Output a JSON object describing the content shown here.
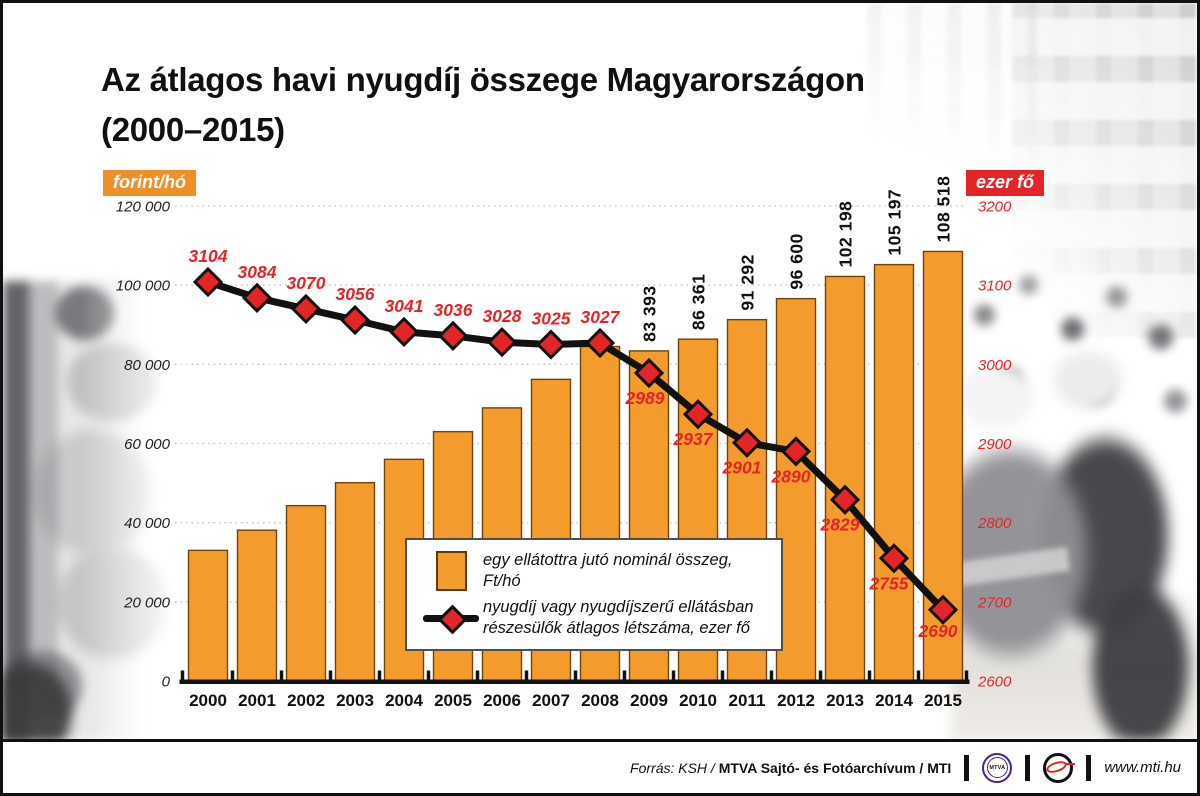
{
  "title": {
    "line1": "Az átlagos havi nyugdíj összege Magyarországon",
    "line2": "(2000–2015)"
  },
  "axis_badges": {
    "left": "forint/hó",
    "right": "ezer fő"
  },
  "chart_data": {
    "type": "combo-bar-line",
    "categories": [
      "2000",
      "2001",
      "2002",
      "2003",
      "2004",
      "2005",
      "2006",
      "2007",
      "2008",
      "2009",
      "2010",
      "2011",
      "2012",
      "2013",
      "2014",
      "2015"
    ],
    "left_axis": {
      "label": "forint/hó",
      "min": 0,
      "max": 120000,
      "tick_labels": [
        "120 000",
        "100 000",
        "80 000",
        "60 000",
        "40 000",
        "20 000",
        "0"
      ]
    },
    "right_axis": {
      "label": "ezer fő",
      "min": 2600,
      "max": 3200,
      "tick_labels": [
        "3200",
        "3100",
        "3000",
        "2900",
        "2800",
        "2700",
        "2600"
      ]
    },
    "grid": "horizontal-dotted",
    "legend_position": "inside-bottom-center",
    "series": [
      {
        "name": "egy ellátottra jutó nominál összeg, Ft/hó",
        "type": "bar",
        "axis": "left",
        "color": "#F49B2D",
        "values": [
          33000,
          38100,
          44300,
          50100,
          56000,
          63000,
          69000,
          76200,
          84500,
          83393,
          86361,
          91292,
          96600,
          102198,
          105197,
          108518
        ],
        "value_labels": [
          null,
          null,
          null,
          null,
          null,
          null,
          null,
          null,
          null,
          "83 393",
          "86 361",
          "91 292",
          "96 600",
          "102 198",
          "105 197",
          "108 518"
        ]
      },
      {
        "name": "nyugdíj vagy nyugdíjszerű ellátásban részesülők átlagos létszáma, ezer fő",
        "type": "line",
        "axis": "right",
        "color": "#111111",
        "marker": "diamond",
        "marker_color": "#E42528",
        "values": [
          3104,
          3084,
          3070,
          3056,
          3041,
          3036,
          3028,
          3025,
          3027,
          2989,
          2937,
          2901,
          2890,
          2829,
          2755,
          2690
        ],
        "value_labels": [
          "3104",
          "3084",
          "3070",
          "3056",
          "3041",
          "3036",
          "3028",
          "3025",
          "3027",
          "2989",
          "2937",
          "2901",
          "2890",
          "2829",
          "2755",
          "2690"
        ]
      }
    ]
  },
  "legend": {
    "item1": "egy ellátottra jutó nominál összeg, Ft/hó",
    "item2_line1": "nyugdíj vagy nyugdíjszerű ellátásban",
    "item2_line2": "részesülők átlagos létszáma, ezer fő"
  },
  "footer": {
    "source_italic": "Forrás: KSH /",
    "source_bold": "MTVA Sajtó- és Fotóarchívum",
    "source_suffix": "/ MTI",
    "mtva_logo": "MTVA",
    "website": "www.mti.hu"
  },
  "colors": {
    "bar_orange": "#F49B2D",
    "badge_orange": "#EF8F2A",
    "red": "#E42528",
    "line_black": "#111111",
    "grid_gray": "#c0c0c0"
  }
}
